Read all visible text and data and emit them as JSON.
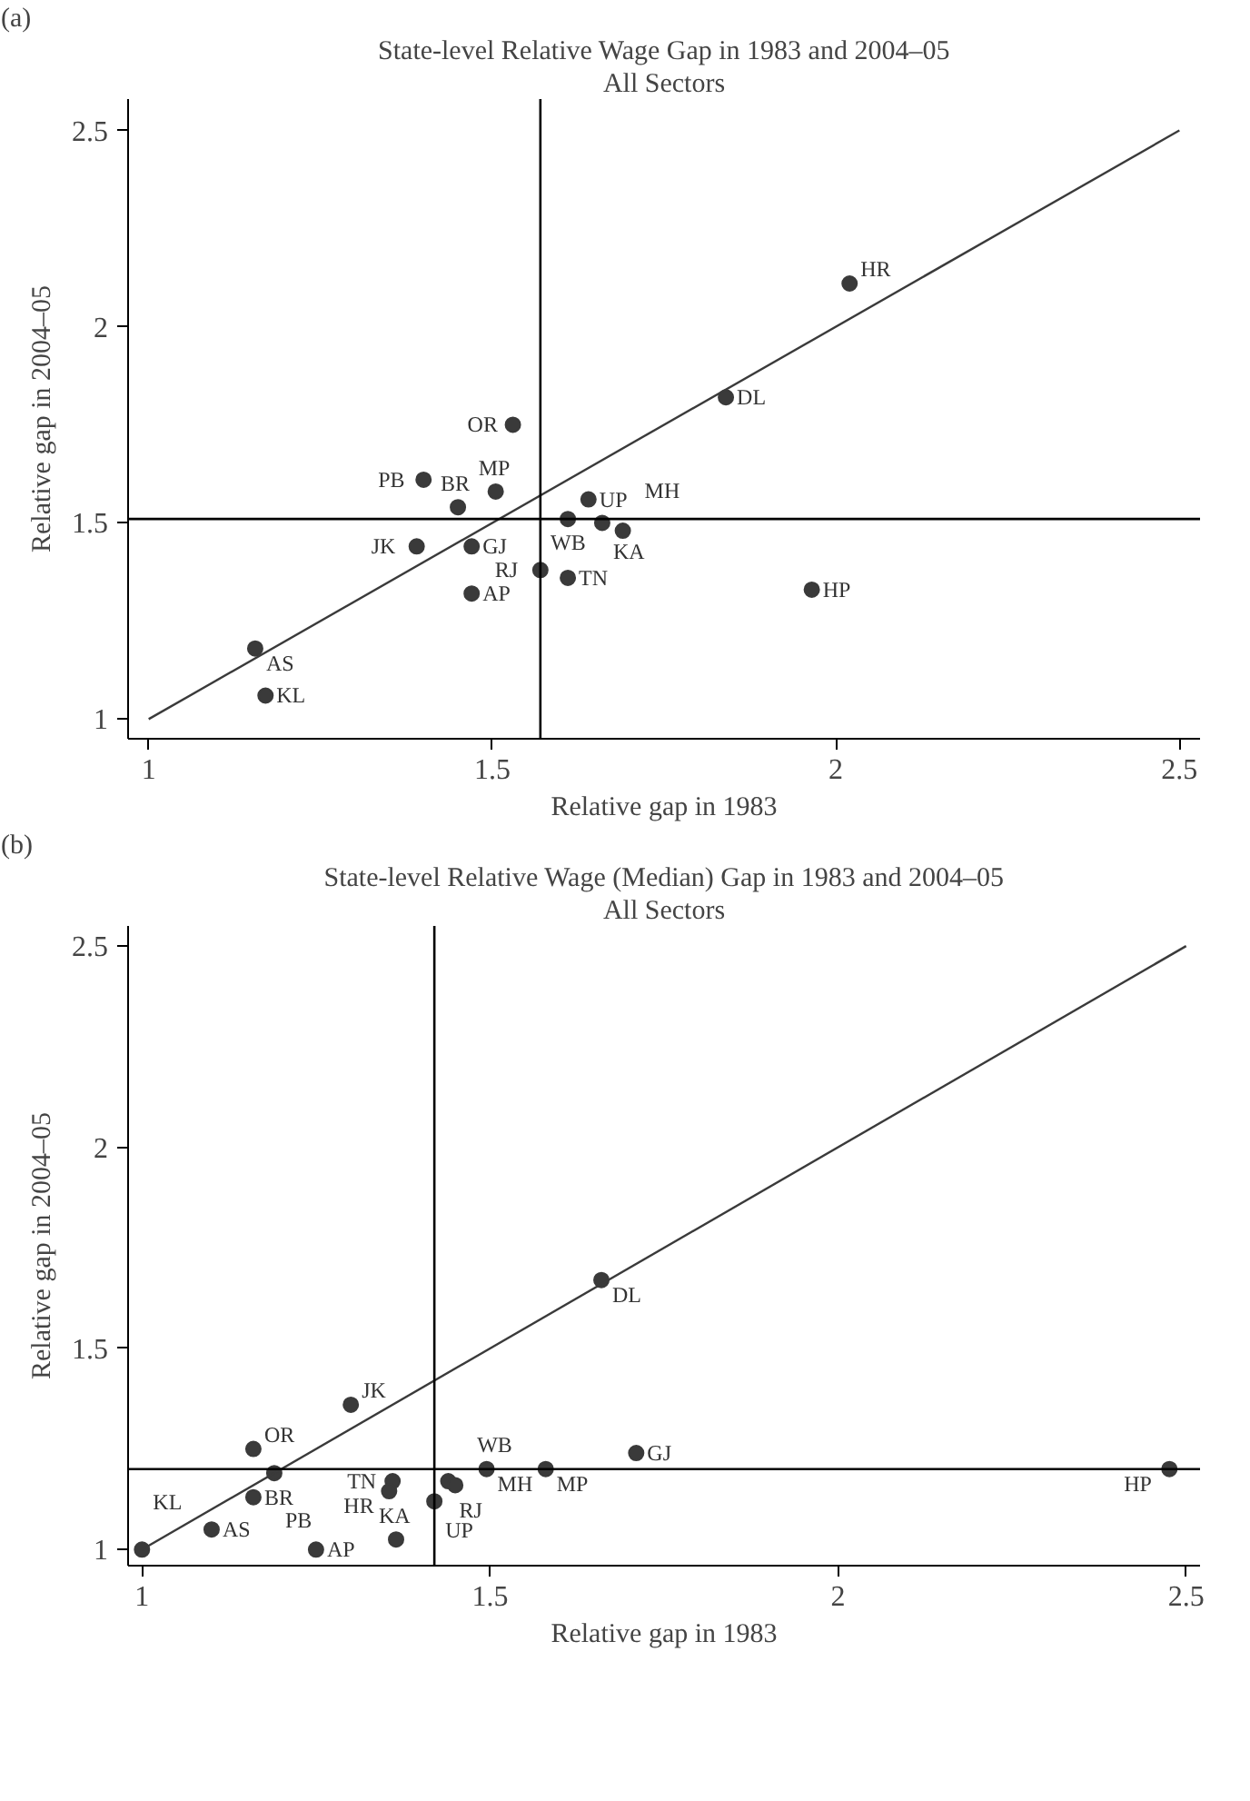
{
  "chart_data": [
    {
      "type": "scatter",
      "title": "State-level Relative Wage Gap in 1983 and 2004–05",
      "subtitle": "All Sectors",
      "xlabel": "Relative gap in 1983",
      "ylabel": "Relative gap in 2004–05",
      "xlim": [
        0.97,
        2.53
      ],
      "ylim": [
        0.95,
        2.58
      ],
      "xticks": [
        1,
        1.5,
        2,
        2.5
      ],
      "yticks": [
        1,
        1.5,
        2,
        2.5
      ],
      "marker": "circle",
      "series": [
        {
          "color": "#3a3a3a",
          "x": [
            1.17,
            1.155,
            1.47,
            1.39,
            1.47,
            1.45,
            1.4,
            1.505,
            1.53,
            1.64,
            1.61,
            1.66,
            1.69,
            1.57,
            1.61,
            1.84,
            2.02,
            1.965
          ],
          "values": [
            1.06,
            1.18,
            1.32,
            1.44,
            1.44,
            1.54,
            1.61,
            1.58,
            1.75,
            1.56,
            1.51,
            1.5,
            1.48,
            1.38,
            1.36,
            1.82,
            2.11,
            1.33
          ]
        },
        {
          "type": "line",
          "marker": "none",
          "color": "#3a3a3a",
          "x": [
            1,
            2.5
          ],
          "values": [
            1,
            2.5
          ]
        }
      ],
      "ref_lines": [
        {
          "axis": "x",
          "value": 1.57,
          "label": null
        },
        {
          "axis": "y",
          "value": 1.51,
          "label": null
        }
      ],
      "annotations": [
        "(a)",
        {
          "text": "KL",
          "x": 1.17,
          "y": 1.06
        },
        {
          "text": "AS",
          "x": 1.155,
          "y": 1.18
        },
        {
          "text": "AP",
          "x": 1.47,
          "y": 1.32
        },
        {
          "text": "JK",
          "x": 1.39,
          "y": 1.44
        },
        {
          "text": "GJ",
          "x": 1.47,
          "y": 1.44
        },
        {
          "text": "BR",
          "x": 1.45,
          "y": 1.54
        },
        {
          "text": "PB",
          "x": 1.4,
          "y": 1.61
        },
        {
          "text": "MP",
          "x": 1.505,
          "y": 1.58
        },
        {
          "text": "OR",
          "x": 1.53,
          "y": 1.75
        },
        {
          "text": "UP",
          "x": 1.64,
          "y": 1.56
        },
        {
          "text": "WB",
          "x": 1.61,
          "y": 1.51
        },
        {
          "text": "KA",
          "x": 1.66,
          "y": 1.5
        },
        {
          "text": "MH",
          "x": 1.69,
          "y": 1.48
        },
        {
          "text": "RJ",
          "x": 1.57,
          "y": 1.38
        },
        {
          "text": "TN",
          "x": 1.61,
          "y": 1.36
        },
        {
          "text": "DL",
          "x": 1.84,
          "y": 1.82
        },
        {
          "text": "HR",
          "x": 2.02,
          "y": 2.11
        },
        {
          "text": "HP",
          "x": 1.965,
          "y": 1.33
        }
      ]
    },
    {
      "type": "scatter",
      "title": "State-level Relative Wage (Median) Gap in 1983 and 2004–05",
      "subtitle": "All Sectors",
      "xlabel": "Relative gap in 1983",
      "ylabel": "Relative gap in 2004–05",
      "xlim": [
        0.98,
        2.52
      ],
      "ylim": [
        0.96,
        2.55
      ],
      "xticks": [
        1,
        1.5,
        2,
        2.5
      ],
      "yticks": [
        1,
        1.5,
        2,
        2.5
      ],
      "marker": "circle",
      "series": [
        {
          "color": "#3a3a3a",
          "x": [
            1.0,
            1.1,
            1.25,
            1.16,
            1.16,
            1.19,
            1.3,
            1.36,
            1.355,
            1.365,
            1.44,
            1.45,
            1.42,
            1.495,
            1.58,
            1.71,
            1.66,
            2.476
          ],
          "values": [
            1.0,
            1.05,
            1.0,
            1.13,
            1.25,
            1.19,
            1.36,
            1.17,
            1.145,
            1.025,
            1.17,
            1.16,
            1.12,
            1.2,
            1.2,
            1.24,
            1.67,
            1.2
          ]
        },
        {
          "type": "line",
          "marker": "none",
          "color": "#3a3a3a",
          "x": [
            1,
            2.5
          ],
          "values": [
            1,
            2.5
          ]
        }
      ],
      "ref_lines": [
        {
          "axis": "x",
          "value": 1.42,
          "label": null
        },
        {
          "axis": "y",
          "value": 1.2,
          "label": null
        }
      ],
      "annotations": [
        "(b)",
        {
          "text": "KL",
          "x": 1.0,
          "y": 1.0
        },
        {
          "text": "AS",
          "x": 1.1,
          "y": 1.05
        },
        {
          "text": "AP",
          "x": 1.25,
          "y": 1.0
        },
        {
          "text": "BR",
          "x": 1.16,
          "y": 1.13
        },
        {
          "text": "OR",
          "x": 1.16,
          "y": 1.25
        },
        {
          "text": "PB",
          "x": 1.19,
          "y": 1.19
        },
        {
          "text": "JK",
          "x": 1.3,
          "y": 1.36
        },
        {
          "text": "TN",
          "x": 1.36,
          "y": 1.17
        },
        {
          "text": "HR",
          "x": 1.355,
          "y": 1.145
        },
        {
          "text": "KA",
          "x": 1.365,
          "y": 1.025
        },
        {
          "text": "RJ",
          "x": 1.44,
          "y": 1.17
        },
        {
          "text": "WB",
          "x": 1.45,
          "y": 1.16
        },
        {
          "text": "UP",
          "x": 1.42,
          "y": 1.12
        },
        {
          "text": "MH",
          "x": 1.495,
          "y": 1.2
        },
        {
          "text": "MP",
          "x": 1.58,
          "y": 1.2
        },
        {
          "text": "GJ",
          "x": 1.71,
          "y": 1.24
        },
        {
          "text": "DL",
          "x": 1.66,
          "y": 1.67
        },
        {
          "text": "HP",
          "x": 2.476,
          "y": 1.2
        }
      ]
    }
  ]
}
